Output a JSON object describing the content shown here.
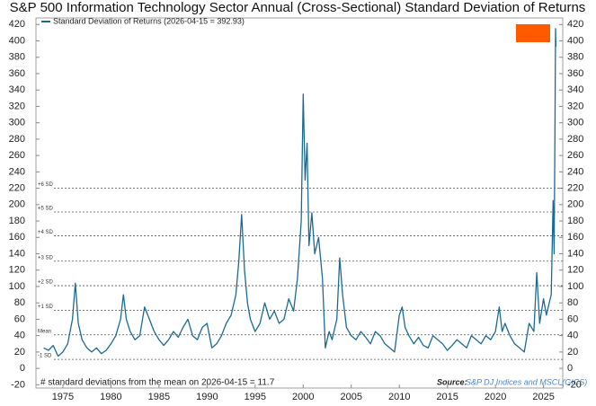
{
  "chart_data": {
    "type": "line",
    "title": "S&P 500 Information Technology Sector Annual (Cross-Sectional) Standard Deviation of Returns",
    "note": "# standard deviations from the mean on 2026-04-15 = 11.7",
    "source_label": "Source:",
    "source": "S&P DJ Indices and MSCI (GICS)",
    "legend_position": "upper left",
    "x": [
      1973.0,
      1973.5,
      1974.0,
      1974.5,
      1975.0,
      1975.5,
      1976.0,
      1976.3,
      1976.6,
      1977.0,
      1977.5,
      1978.0,
      1978.5,
      1979.0,
      1979.5,
      1980.0,
      1980.5,
      1981.0,
      1981.3,
      1981.6,
      1982.0,
      1982.5,
      1983.0,
      1983.5,
      1984.0,
      1984.5,
      1985.0,
      1985.5,
      1986.0,
      1986.5,
      1987.0,
      1987.5,
      1988.0,
      1988.5,
      1989.0,
      1989.5,
      1990.0,
      1990.5,
      1991.0,
      1991.5,
      1992.0,
      1992.5,
      1993.0,
      1993.3,
      1993.6,
      1993.9,
      1994.2,
      1994.5,
      1995.0,
      1995.5,
      1996.0,
      1996.5,
      1997.0,
      1997.5,
      1998.0,
      1998.5,
      1999.0,
      1999.4,
      1999.8,
      2000.0,
      2000.2,
      2000.4,
      2000.6,
      2000.9,
      2001.2,
      2001.6,
      2002.0,
      2002.3,
      2002.7,
      2003.0,
      2003.5,
      2003.8,
      2004.1,
      2004.5,
      2005.0,
      2005.5,
      2006.0,
      2006.5,
      2007.0,
      2007.5,
      2008.0,
      2008.5,
      2009.0,
      2009.5,
      2010.0,
      2010.3,
      2010.6,
      2011.0,
      2011.5,
      2012.0,
      2012.5,
      2013.0,
      2013.5,
      2014.0,
      2014.5,
      2015.0,
      2015.5,
      2016.0,
      2016.5,
      2017.0,
      2017.5,
      2018.0,
      2018.5,
      2019.0,
      2019.5,
      2020.0,
      2020.4,
      2020.7,
      2021.0,
      2021.5,
      2022.0,
      2022.5,
      2023.0,
      2023.5,
      2024.0,
      2024.3,
      2024.6,
      2025.0,
      2025.3,
      2025.6,
      2025.8,
      2026.0,
      2026.1,
      2026.2,
      2026.25,
      2026.29
    ],
    "series": [
      {
        "name": "Standard Deviation of Returns (2026-04-15 = 392.93)",
        "color": "#1b6a93",
        "values": [
          25,
          22,
          28,
          15,
          20,
          30,
          60,
          104,
          55,
          35,
          25,
          20,
          25,
          18,
          22,
          30,
          40,
          60,
          90,
          60,
          45,
          35,
          40,
          75,
          60,
          45,
          35,
          28,
          35,
          45,
          38,
          50,
          60,
          40,
          35,
          50,
          55,
          25,
          30,
          40,
          55,
          65,
          90,
          130,
          188,
          120,
          80,
          60,
          45,
          55,
          80,
          60,
          70,
          55,
          60,
          85,
          70,
          110,
          180,
          335,
          230,
          275,
          150,
          190,
          140,
          160,
          110,
          25,
          45,
          35,
          60,
          135,
          90,
          50,
          40,
          35,
          45,
          38,
          30,
          45,
          40,
          30,
          25,
          20,
          65,
          75,
          50,
          40,
          30,
          38,
          28,
          25,
          40,
          35,
          30,
          22,
          28,
          35,
          30,
          25,
          40,
          35,
          30,
          40,
          35,
          45,
          75,
          45,
          55,
          40,
          30,
          25,
          20,
          55,
          45,
          117,
          55,
          85,
          65,
          80,
          90,
          205,
          140,
          300,
          415,
          393
        ]
      }
    ],
    "reference_lines": [
      {
        "label": "+6 SD",
        "value": 220
      },
      {
        "label": "+5 SD",
        "value": 191
      },
      {
        "label": "+4 SD",
        "value": 162
      },
      {
        "label": "+3 SD",
        "value": 131
      },
      {
        "label": "+2 SD",
        "value": 101
      },
      {
        "label": "+1 SD",
        "value": 71
      },
      {
        "label": "Mean",
        "value": 41
      },
      {
        "label": "-1 SD",
        "value": 11
      }
    ],
    "xlim": [
      1972.2,
      2027.0
    ],
    "xticks": [
      1975,
      1980,
      1985,
      1990,
      1995,
      2000,
      2005,
      2010,
      2015,
      2020,
      2025
    ],
    "ylim": [
      -24,
      428
    ],
    "yticks": [
      -20,
      0,
      20,
      40,
      60,
      80,
      100,
      120,
      140,
      160,
      180,
      200,
      220,
      240,
      260,
      280,
      300,
      320,
      340,
      360,
      380,
      400,
      420
    ]
  }
}
